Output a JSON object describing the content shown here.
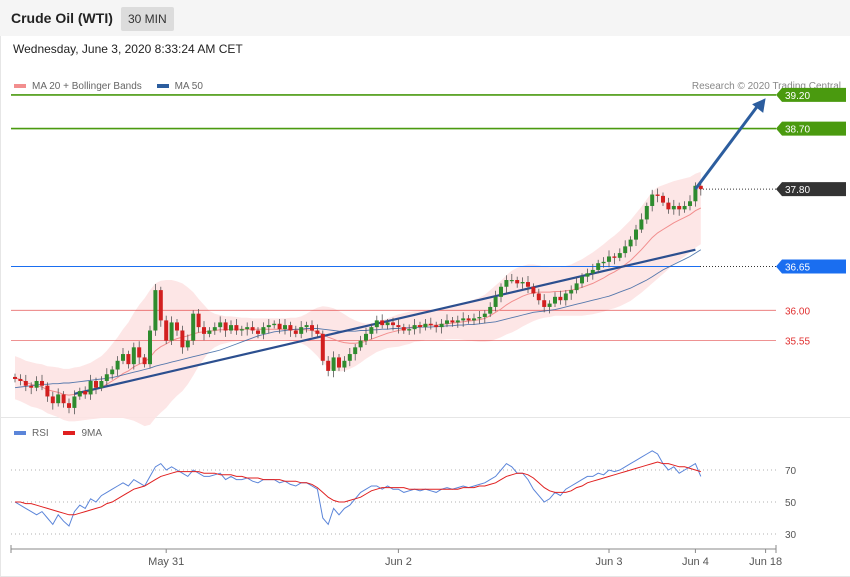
{
  "header": {
    "title": "Crude Oil (WTI)",
    "timeframe": "30 MIN"
  },
  "date_text": "Wednesday, June 3, 2020 8:33:24 AM CET",
  "credit": "Research © 2020 Trading Central",
  "legend": [
    {
      "label": "MA 20 + Bollinger Bands",
      "color": "#f28e8e"
    },
    {
      "label": "MA 50",
      "color": "#2c5d9e"
    }
  ],
  "rsi_legend": [
    {
      "label": "RSI",
      "color": "#5b85d9"
    },
    {
      "label": "9MA",
      "color": "#e02020"
    }
  ],
  "chart_data": [
    {
      "type": "candlestick",
      "ylim": [
        34.4,
        39.6
      ],
      "x_ticks": [
        {
          "label": "May 31",
          "i": 28
        },
        {
          "label": "Jun 2",
          "i": 71
        },
        {
          "label": "Jun 3",
          "i": 110
        },
        {
          "label": "Jun 4",
          "i": 126
        },
        {
          "label": "Jun 18",
          "i": 139
        }
      ],
      "levels": [
        {
          "value": 39.2,
          "label": "39.20",
          "kind": "resistance",
          "color": "#4a9a0f"
        },
        {
          "value": 38.7,
          "label": "38.70",
          "kind": "resistance",
          "color": "#4a9a0f"
        },
        {
          "value": 37.8,
          "label": "37.80",
          "kind": "last",
          "color": "#333333"
        },
        {
          "value": 36.65,
          "label": "36.65",
          "kind": "pivot",
          "color": "#1a6ef0"
        },
        {
          "value": 36.0,
          "label": "36.00",
          "kind": "support",
          "color": "#e03030"
        },
        {
          "value": 35.55,
          "label": "35.55",
          "kind": "support",
          "color": "#e03030"
        }
      ],
      "trendline": {
        "from": {
          "i": 11,
          "v": 34.76
        },
        "to": {
          "i": 126,
          "v": 36.9
        }
      },
      "target_arrow": {
        "from": {
          "i": 126,
          "v": 37.8
        },
        "to": {
          "i": 139,
          "v": 39.15
        }
      },
      "closes": [
        34.98,
        34.95,
        34.88,
        34.85,
        34.95,
        34.88,
        34.72,
        34.62,
        34.75,
        34.62,
        34.55,
        34.72,
        34.8,
        34.75,
        34.95,
        34.85,
        34.95,
        35.05,
        35.12,
        35.25,
        35.35,
        35.2,
        35.45,
        35.3,
        35.2,
        35.7,
        36.3,
        35.85,
        35.55,
        35.82,
        35.7,
        35.45,
        35.55,
        35.95,
        35.75,
        35.65,
        35.7,
        35.75,
        35.82,
        35.7,
        35.78,
        35.7,
        35.72,
        35.75,
        35.7,
        35.65,
        35.75,
        35.78,
        35.8,
        35.72,
        35.78,
        35.7,
        35.65,
        35.75,
        35.78,
        35.7,
        35.65,
        35.25,
        35.1,
        35.3,
        35.15,
        35.25,
        35.35,
        35.45,
        35.55,
        35.65,
        35.75,
        35.85,
        35.78,
        35.82,
        35.78,
        35.75,
        35.7,
        35.72,
        35.78,
        35.75,
        35.8,
        35.78,
        35.75,
        35.8,
        35.85,
        35.82,
        35.85,
        35.88,
        35.85,
        35.88,
        35.9,
        35.95,
        36.05,
        36.2,
        36.35,
        36.45,
        36.45,
        36.4,
        36.42,
        36.35,
        36.25,
        36.15,
        36.05,
        36.1,
        36.2,
        36.15,
        36.25,
        36.3,
        36.4,
        36.5,
        36.55,
        36.6,
        36.7,
        36.72,
        36.8,
        36.78,
        36.85,
        36.95,
        37.05,
        37.2,
        37.35,
        37.55,
        37.72,
        37.7,
        37.6,
        37.5,
        37.55,
        37.5,
        37.55,
        37.62,
        37.85,
        37.8
      ],
      "ma20": [
        35.0,
        34.97,
        34.93,
        34.9,
        34.88,
        34.86,
        34.82,
        34.8,
        34.78,
        34.75,
        34.74,
        34.75,
        34.76,
        34.78,
        34.8,
        34.83,
        34.86,
        34.9,
        34.95,
        35.0,
        35.06,
        35.1,
        35.16,
        35.2,
        35.23,
        35.3,
        35.4,
        35.46,
        35.5,
        35.55,
        35.58,
        35.6,
        35.62,
        35.65,
        35.67,
        35.68,
        35.69,
        35.7,
        35.71,
        35.71,
        35.72,
        35.72,
        35.72,
        35.72,
        35.72,
        35.72,
        35.72,
        35.72,
        35.72,
        35.72,
        35.72,
        35.72,
        35.71,
        35.71,
        35.71,
        35.7,
        35.68,
        35.64,
        35.6,
        35.57,
        35.54,
        35.52,
        35.51,
        35.51,
        35.52,
        35.54,
        35.57,
        35.6,
        35.63,
        35.66,
        35.68,
        35.7,
        35.72,
        35.74,
        35.76,
        35.77,
        35.78,
        35.78,
        35.78,
        35.79,
        35.8,
        35.81,
        35.82,
        35.83,
        35.84,
        35.85,
        35.86,
        35.88,
        35.92,
        35.97,
        36.02,
        36.08,
        36.13,
        36.17,
        36.21,
        36.24,
        36.26,
        36.27,
        36.27,
        36.27,
        36.28,
        36.28,
        36.29,
        36.3,
        36.32,
        36.34,
        36.37,
        36.4,
        36.44,
        36.48,
        36.53,
        36.57,
        36.62,
        36.68,
        36.74,
        36.82,
        36.9,
        36.99,
        37.08,
        37.15,
        37.2,
        37.25,
        37.3,
        37.34,
        37.38,
        37.42,
        37.48,
        37.52
      ],
      "ma50": [
        34.85,
        34.86,
        34.87,
        34.88,
        34.89,
        34.9,
        34.9,
        34.91,
        34.91,
        34.92,
        34.92,
        34.93,
        34.94,
        34.95,
        34.96,
        34.97,
        34.98,
        34.99,
        35.0,
        35.02,
        35.04,
        35.06,
        35.08,
        35.1,
        35.12,
        35.14,
        35.17,
        35.19,
        35.21,
        35.23,
        35.25,
        35.27,
        35.29,
        35.31,
        35.33,
        35.35,
        35.37,
        35.39,
        35.41,
        35.44,
        35.47,
        35.5,
        35.53,
        35.56,
        35.59,
        35.62,
        35.64,
        35.66,
        35.68,
        35.69,
        35.7,
        35.71,
        35.72,
        35.72,
        35.73,
        35.73,
        35.73,
        35.72,
        35.71,
        35.7,
        35.69,
        35.69,
        35.69,
        35.69,
        35.7,
        35.7,
        35.71,
        35.71,
        35.72,
        35.72,
        35.73,
        35.73,
        35.74,
        35.74,
        35.74,
        35.75,
        35.75,
        35.75,
        35.76,
        35.76,
        35.77,
        35.77,
        35.78,
        35.78,
        35.79,
        35.79,
        35.8,
        35.81,
        35.82,
        35.83,
        35.85,
        35.87,
        35.89,
        35.91,
        35.93,
        35.95,
        35.97,
        35.98,
        35.99,
        36.0,
        36.01,
        36.03,
        36.05,
        36.07,
        36.09,
        36.11,
        36.13,
        36.15,
        36.17,
        36.19,
        36.21,
        36.24,
        36.27,
        36.3,
        36.33,
        36.37,
        36.41,
        36.45,
        36.5,
        36.55,
        36.6,
        36.64,
        36.68,
        36.72,
        36.76,
        36.8,
        36.85,
        36.9
      ],
      "bb_width": [
        0.32,
        0.32,
        0.32,
        0.33,
        0.33,
        0.34,
        0.35,
        0.36,
        0.37,
        0.38,
        0.39,
        0.4,
        0.4,
        0.41,
        0.42,
        0.44,
        0.46,
        0.5,
        0.55,
        0.6,
        0.66,
        0.72,
        0.8,
        0.88,
        0.95,
        1.0,
        1.0,
        0.98,
        0.95,
        0.9,
        0.85,
        0.8,
        0.72,
        0.62,
        0.5,
        0.4,
        0.3,
        0.25,
        0.22,
        0.2,
        0.19,
        0.18,
        0.17,
        0.17,
        0.16,
        0.16,
        0.16,
        0.16,
        0.16,
        0.16,
        0.16,
        0.17,
        0.18,
        0.2,
        0.24,
        0.3,
        0.36,
        0.42,
        0.45,
        0.46,
        0.45,
        0.42,
        0.38,
        0.34,
        0.3,
        0.26,
        0.24,
        0.22,
        0.22,
        0.22,
        0.23,
        0.24,
        0.24,
        0.24,
        0.23,
        0.23,
        0.22,
        0.22,
        0.22,
        0.23,
        0.23,
        0.24,
        0.25,
        0.27,
        0.29,
        0.31,
        0.33,
        0.35,
        0.38,
        0.4,
        0.42,
        0.44,
        0.46,
        0.46,
        0.45,
        0.44,
        0.42,
        0.4,
        0.38,
        0.37,
        0.36,
        0.36,
        0.37,
        0.38,
        0.4,
        0.42,
        0.44,
        0.46,
        0.48,
        0.5,
        0.52,
        0.54,
        0.56,
        0.58,
        0.6,
        0.62,
        0.64,
        0.66,
        0.68,
        0.68,
        0.66,
        0.64,
        0.62,
        0.6,
        0.58,
        0.56,
        0.55,
        0.54
      ]
    },
    {
      "type": "line",
      "ylim": [
        20,
        90
      ],
      "y_ticks": [
        70,
        50,
        30
      ],
      "series": [
        {
          "name": "RSI",
          "color": "#5b85d9",
          "values": [
            50,
            48,
            46,
            44,
            42,
            44,
            40,
            36,
            42,
            38,
            35,
            44,
            48,
            46,
            52,
            50,
            54,
            56,
            58,
            60,
            62,
            60,
            64,
            62,
            60,
            66,
            72,
            74,
            70,
            72,
            70,
            68,
            66,
            70,
            68,
            66,
            66,
            67,
            68,
            64,
            66,
            64,
            64,
            65,
            63,
            62,
            64,
            64,
            64,
            62,
            63,
            61,
            60,
            62,
            62,
            60,
            58,
            40,
            36,
            46,
            42,
            46,
            48,
            52,
            56,
            58,
            60,
            60,
            58,
            60,
            58,
            58,
            56,
            57,
            58,
            57,
            58,
            57,
            56,
            58,
            59,
            58,
            59,
            60,
            59,
            60,
            61,
            62,
            64,
            66,
            70,
            74,
            72,
            68,
            68,
            64,
            58,
            54,
            50,
            52,
            56,
            54,
            58,
            60,
            62,
            64,
            66,
            66,
            68,
            67,
            70,
            69,
            70,
            72,
            74,
            76,
            78,
            80,
            82,
            80,
            74,
            70,
            72,
            68,
            70,
            72,
            74,
            66
          ]
        },
        {
          "name": "9MA",
          "color": "#e02020",
          "values": [
            50,
            50,
            49,
            49,
            48,
            47,
            46,
            45,
            44,
            43,
            42,
            42,
            43,
            44,
            45,
            46,
            47,
            49,
            50,
            52,
            54,
            56,
            58,
            59,
            60,
            62,
            64,
            66,
            67,
            68,
            69,
            69,
            69,
            69,
            69,
            68,
            68,
            68,
            67,
            67,
            67,
            66,
            66,
            65,
            65,
            65,
            64,
            64,
            64,
            64,
            63,
            63,
            63,
            62,
            62,
            61,
            59,
            56,
            53,
            51,
            50,
            50,
            51,
            52,
            53,
            55,
            57,
            58,
            59,
            59,
            59,
            59,
            59,
            58,
            58,
            58,
            58,
            58,
            58,
            58,
            58,
            58,
            58,
            59,
            59,
            59,
            60,
            60,
            61,
            62,
            64,
            66,
            67,
            68,
            68,
            67,
            65,
            62,
            59,
            57,
            56,
            56,
            56,
            57,
            59,
            60,
            62,
            63,
            64,
            65,
            66,
            67,
            68,
            69,
            70,
            71,
            72,
            73,
            74,
            75,
            74,
            74,
            73,
            72,
            72,
            71,
            70,
            69
          ]
        }
      ]
    }
  ]
}
